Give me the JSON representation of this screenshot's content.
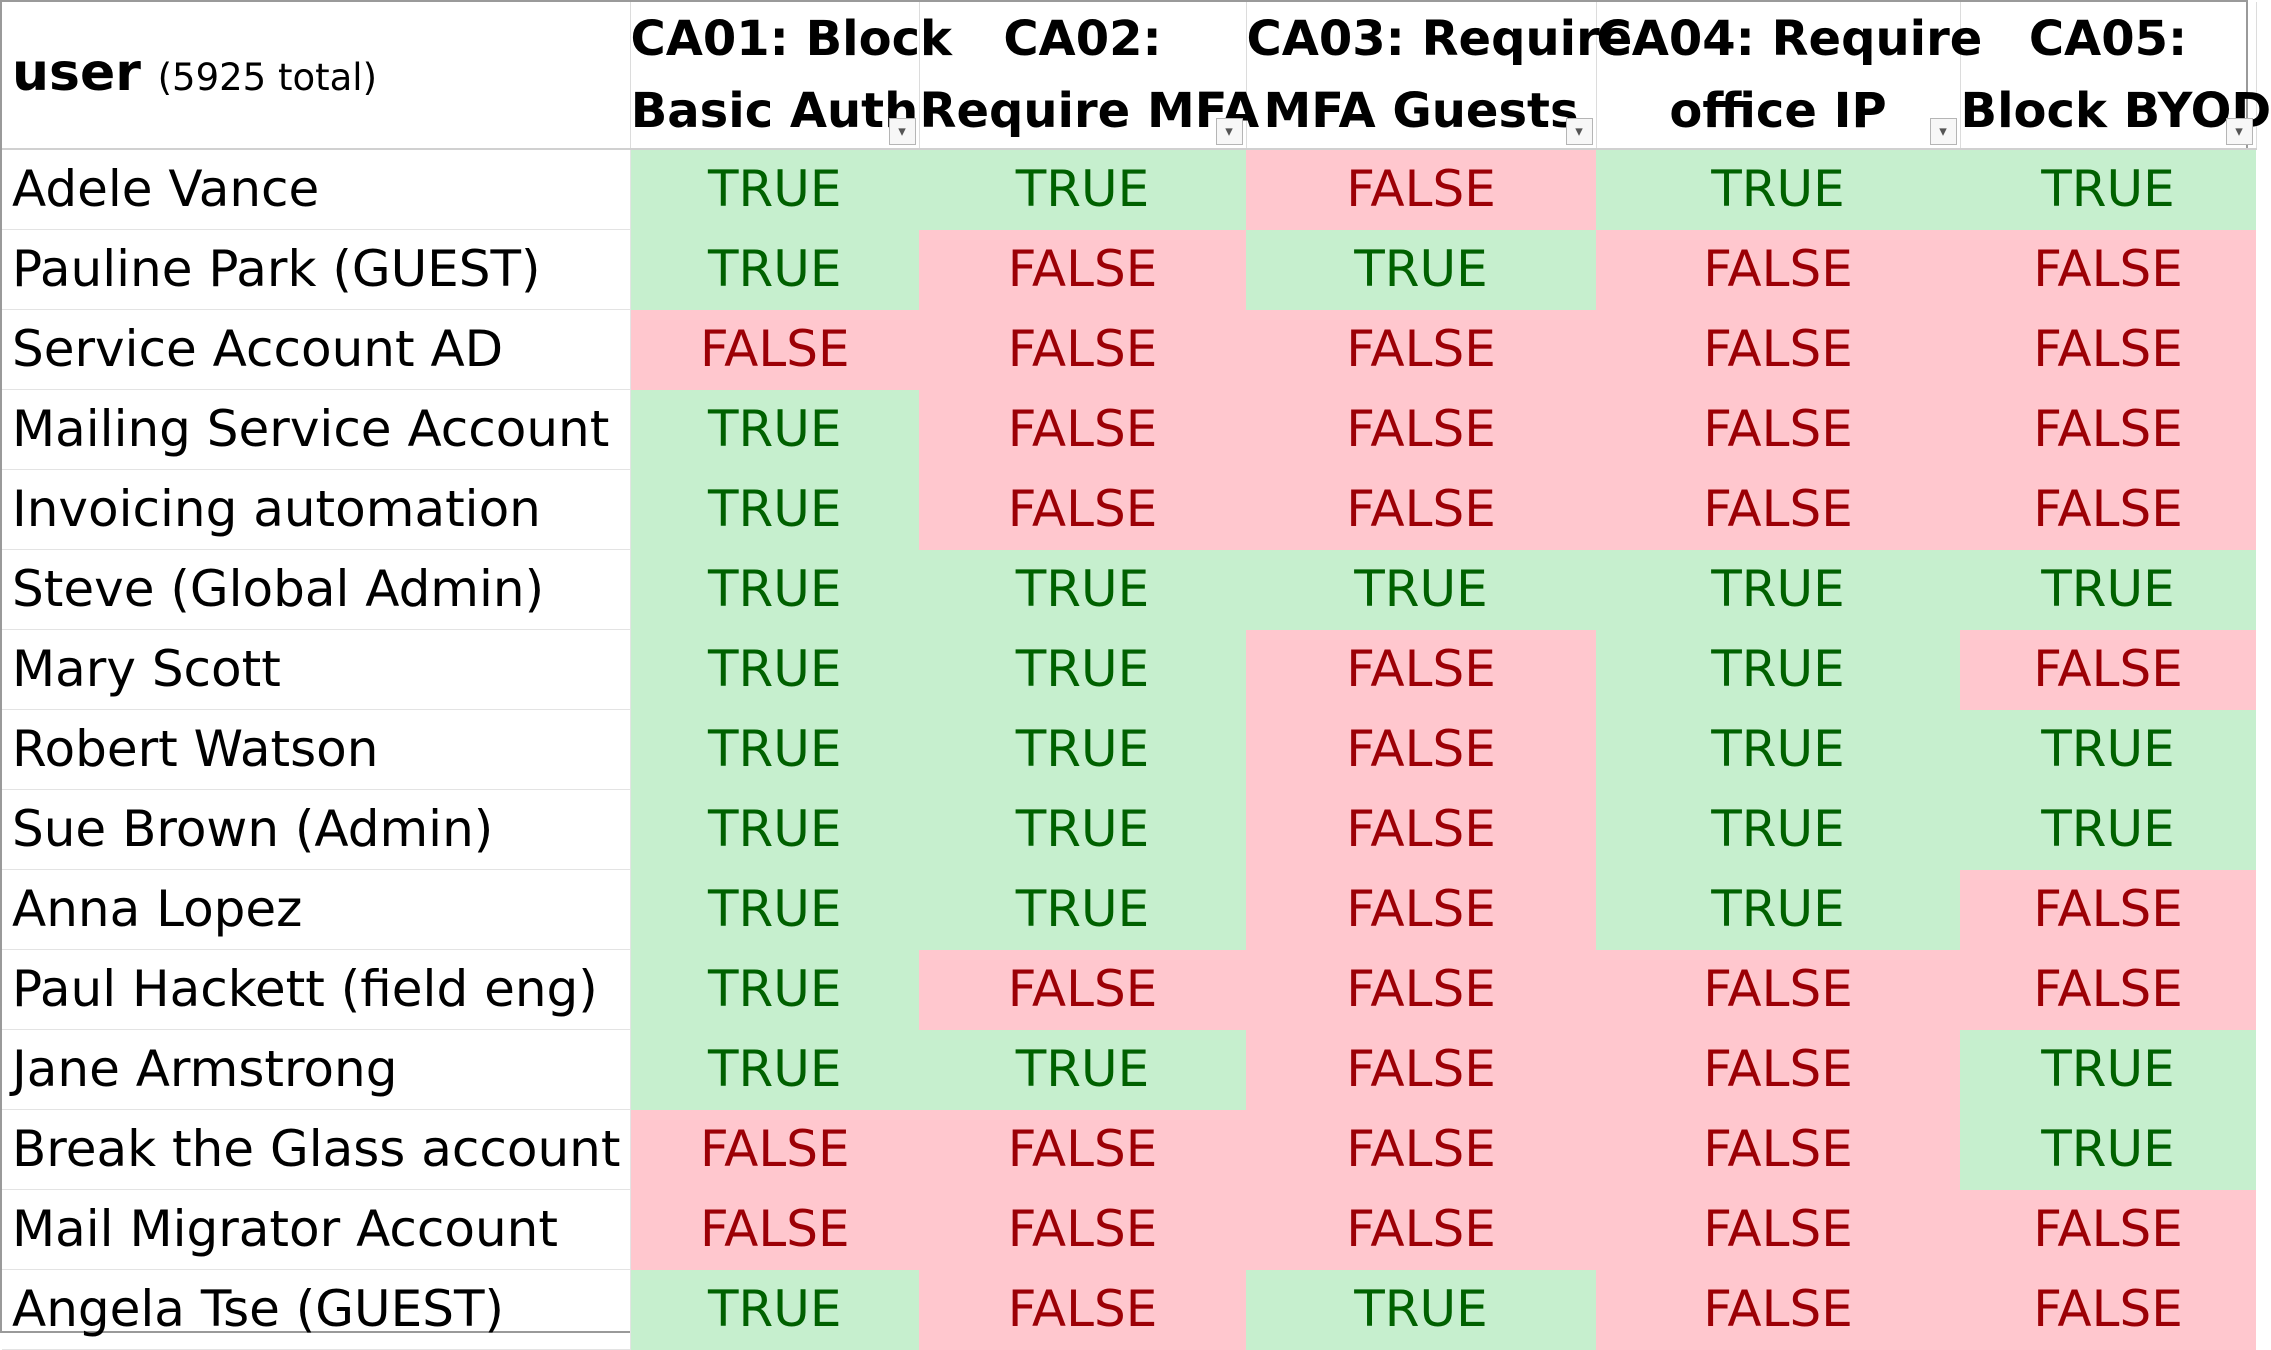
{
  "header": {
    "user_title": "user",
    "user_total": "(5925 total)",
    "columns": [
      {
        "line1": "CA01: Block",
        "line2": "Basic Auth"
      },
      {
        "line1": "CA02:",
        "line2": "Require MFA"
      },
      {
        "line1": "CA03: Require",
        "line2": "MFA Guests"
      },
      {
        "line1": "CA04: Require",
        "line2": "office IP"
      },
      {
        "line1": "CA05:",
        "line2": "Block BYOD"
      }
    ]
  },
  "colors": {
    "true_fill": "#c6efce",
    "true_text": "#006100",
    "false_fill": "#ffc7ce",
    "false_text": "#9c0006"
  },
  "rows": [
    {
      "user": "Adele Vance",
      "values": [
        "TRUE",
        "TRUE",
        "FALSE",
        "TRUE",
        "TRUE"
      ]
    },
    {
      "user": "Pauline Park (GUEST)",
      "values": [
        "TRUE",
        "FALSE",
        "TRUE",
        "FALSE",
        "FALSE"
      ]
    },
    {
      "user": "Service Account AD",
      "values": [
        "FALSE",
        "FALSE",
        "FALSE",
        "FALSE",
        "FALSE"
      ]
    },
    {
      "user": "Mailing Service Account",
      "values": [
        "TRUE",
        "FALSE",
        "FALSE",
        "FALSE",
        "FALSE"
      ]
    },
    {
      "user": "Invoicing automation",
      "values": [
        "TRUE",
        "FALSE",
        "FALSE",
        "FALSE",
        "FALSE"
      ]
    },
    {
      "user": "Steve (Global Admin)",
      "values": [
        "TRUE",
        "TRUE",
        "TRUE",
        "TRUE",
        "TRUE"
      ]
    },
    {
      "user": "Mary Scott",
      "values": [
        "TRUE",
        "TRUE",
        "FALSE",
        "TRUE",
        "FALSE"
      ]
    },
    {
      "user": "Robert Watson",
      "values": [
        "TRUE",
        "TRUE",
        "FALSE",
        "TRUE",
        "TRUE"
      ]
    },
    {
      "user": "Sue Brown (Admin)",
      "values": [
        "TRUE",
        "TRUE",
        "FALSE",
        "TRUE",
        "TRUE"
      ]
    },
    {
      "user": "Anna Lopez",
      "values": [
        "TRUE",
        "TRUE",
        "FALSE",
        "TRUE",
        "FALSE"
      ]
    },
    {
      "user": "Paul Hackett (field eng)",
      "values": [
        "TRUE",
        "FALSE",
        "FALSE",
        "FALSE",
        "FALSE"
      ]
    },
    {
      "user": "Jane Armstrong",
      "values": [
        "TRUE",
        "TRUE",
        "FALSE",
        "FALSE",
        "TRUE"
      ]
    },
    {
      "user": "Break the Glass account",
      "values": [
        "FALSE",
        "FALSE",
        "FALSE",
        "FALSE",
        "TRUE"
      ]
    },
    {
      "user": "Mail Migrator Account",
      "values": [
        "FALSE",
        "FALSE",
        "FALSE",
        "FALSE",
        "FALSE"
      ]
    },
    {
      "user": "Angela Tse (GUEST)",
      "values": [
        "TRUE",
        "FALSE",
        "TRUE",
        "FALSE",
        "FALSE"
      ]
    }
  ]
}
